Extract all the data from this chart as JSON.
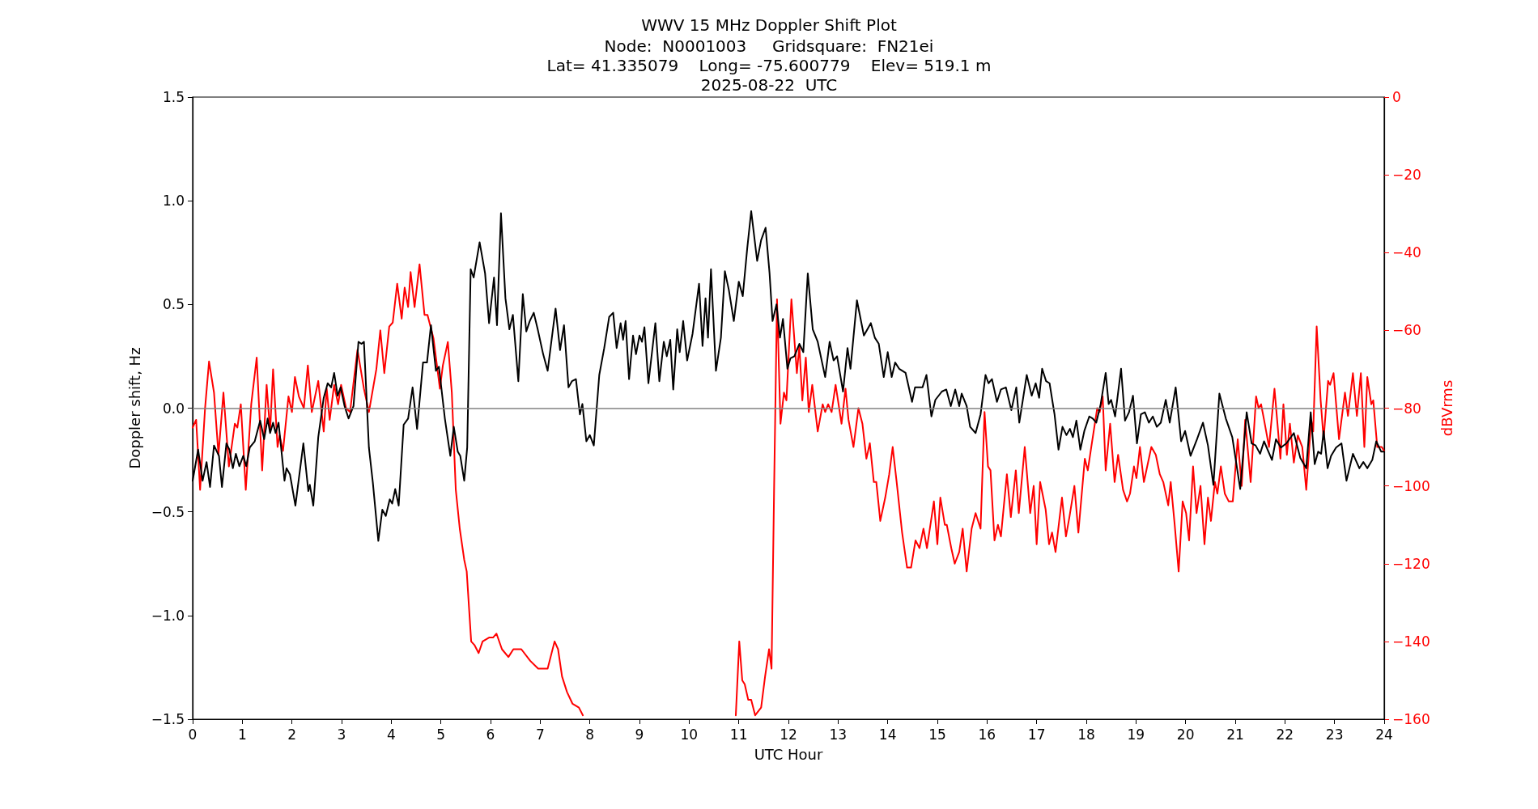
{
  "chart_data": {
    "type": "line",
    "title": "WWV 15 MHz Doppler Shift Plot",
    "subtitle": "Node:  N0001003     Gridsquare:  FN21ei\nLat= 41.335079    Long= -75.600779    Elev= 519.1 m\n2025-08-22  UTC",
    "xlabel": "UTC Hour",
    "ylabel": "Doppler shift, Hz",
    "y2label": "dBVrms",
    "xlim": [
      0,
      24
    ],
    "xticks": [
      0,
      1,
      2,
      3,
      4,
      5,
      6,
      7,
      8,
      9,
      10,
      11,
      12,
      13,
      14,
      15,
      16,
      17,
      18,
      19,
      20,
      21,
      22,
      23,
      24
    ],
    "ylim": [
      -1.5,
      1.5
    ],
    "yticks": [
      {
        "value": -1.5,
        "label": "−1.5"
      },
      {
        "value": -1,
        "label": "−1.0"
      },
      {
        "value": -0.5,
        "label": "−0.5"
      },
      {
        "value": 0,
        "label": "0.0"
      },
      {
        "value": 0.5,
        "label": "0.5"
      },
      {
        "value": 1,
        "label": "1.0"
      },
      {
        "value": 1.5,
        "label": "1.5"
      }
    ],
    "y2lim": [
      -160,
      0
    ],
    "y2ticks": [
      {
        "value": -160,
        "label": "−160"
      },
      {
        "value": -140,
        "label": "−140"
      },
      {
        "value": -120,
        "label": "−120"
      },
      {
        "value": -100,
        "label": "−100"
      },
      {
        "value": -80,
        "label": "−80"
      },
      {
        "value": -60,
        "label": "−60"
      },
      {
        "value": -40,
        "label": "−40"
      },
      {
        "value": -20,
        "label": "−20"
      },
      {
        "value": 0,
        "label": "0"
      }
    ],
    "grid": false,
    "marker": "none",
    "line_style": "solid",
    "ref_lines": [
      {
        "axis": "y",
        "value": 0,
        "color": "#808080"
      }
    ],
    "series": [
      {
        "color": "#000000",
        "axis": "y",
        "x": [
          0.0,
          0.11,
          0.2,
          0.28,
          0.35,
          0.43,
          0.53,
          0.59,
          0.68,
          0.74,
          0.81,
          0.87,
          0.94,
          1.02,
          1.08,
          1.15,
          1.25,
          1.36,
          1.44,
          1.51,
          1.56,
          1.62,
          1.67,
          1.73,
          1.85,
          1.89,
          1.96,
          2.07,
          2.23,
          2.33,
          2.36,
          2.43,
          2.53,
          2.64,
          2.72,
          2.79,
          2.85,
          2.92,
          2.98,
          3.06,
          3.14,
          3.24,
          3.34,
          3.4,
          3.45,
          3.55,
          3.63,
          3.74,
          3.82,
          3.89,
          3.97,
          4.02,
          4.08,
          4.15,
          4.25,
          4.34,
          4.43,
          4.52,
          4.64,
          4.72,
          4.8,
          4.9,
          4.96,
          5.08,
          5.19,
          5.26,
          5.34,
          5.39,
          5.47,
          5.53,
          5.6,
          5.66,
          5.78,
          5.89,
          5.97,
          6.07,
          6.13,
          6.21,
          6.3,
          6.38,
          6.45,
          6.56,
          6.65,
          6.72,
          6.79,
          6.87,
          6.95,
          7.06,
          7.15,
          7.31,
          7.4,
          7.48,
          7.57,
          7.64,
          7.72,
          7.8,
          7.85,
          7.93,
          8.0,
          8.08,
          8.19,
          8.29,
          8.39,
          8.47,
          8.54,
          8.62,
          8.67,
          8.72,
          8.79,
          8.87,
          8.93,
          9.0,
          9.05,
          9.1,
          9.18,
          9.32,
          9.4,
          9.49,
          9.55,
          9.62,
          9.68,
          9.76,
          9.81,
          9.88,
          9.96,
          10.07,
          10.2,
          10.27,
          10.33,
          10.38,
          10.44,
          10.54,
          10.64,
          10.72,
          10.8,
          10.9,
          11.0,
          11.08,
          11.17,
          11.25,
          11.37,
          11.45,
          11.54,
          11.62,
          11.68,
          11.76,
          11.83,
          11.89,
          11.98,
          12.04,
          12.12,
          12.22,
          12.3,
          12.39,
          12.49,
          12.59,
          12.74,
          12.83,
          12.91,
          12.98,
          13.1,
          13.19,
          13.25,
          13.38,
          13.52,
          13.66,
          13.74,
          13.82,
          13.92,
          14.0,
          14.08,
          14.15,
          14.23,
          14.36,
          14.49,
          14.55,
          14.7,
          14.78,
          14.88,
          14.96,
          15.09,
          15.18,
          15.27,
          15.36,
          15.44,
          15.49,
          15.59,
          15.66,
          15.77,
          15.87,
          15.97,
          16.03,
          16.1,
          16.2,
          16.28,
          16.38,
          16.49,
          16.59,
          16.65,
          16.8,
          16.9,
          16.98,
          17.05,
          17.11,
          17.19,
          17.26,
          17.36,
          17.44,
          17.52,
          17.6,
          17.67,
          17.73,
          17.8,
          17.88,
          17.96,
          18.06,
          18.13,
          18.2,
          18.29,
          18.39,
          18.45,
          18.5,
          18.58,
          18.7,
          18.78,
          18.86,
          18.94,
          19.02,
          19.1,
          19.18,
          19.26,
          19.34,
          19.42,
          19.5,
          19.6,
          19.68,
          19.8,
          19.91,
          19.99,
          20.1,
          20.23,
          20.35,
          20.45,
          20.56,
          20.68,
          20.81,
          20.94,
          21.1,
          21.23,
          21.33,
          21.41,
          21.5,
          21.58,
          21.74,
          21.82,
          21.92,
          22.03,
          22.18,
          22.31,
          22.43,
          22.52,
          22.6,
          22.67,
          22.73,
          22.78,
          22.86,
          22.93,
          23.03,
          23.14,
          23.24,
          23.37,
          23.5,
          23.58,
          23.66,
          23.76,
          23.84,
          23.94,
          24.0
        ],
        "values": [
          -0.35,
          -0.2,
          -0.35,
          -0.26,
          -0.38,
          -0.18,
          -0.23,
          -0.38,
          -0.17,
          -0.2,
          -0.29,
          -0.22,
          -0.28,
          -0.23,
          -0.28,
          -0.19,
          -0.16,
          -0.06,
          -0.15,
          -0.05,
          -0.12,
          -0.07,
          -0.12,
          -0.07,
          -0.35,
          -0.29,
          -0.32,
          -0.47,
          -0.17,
          -0.4,
          -0.37,
          -0.47,
          -0.14,
          0.05,
          0.12,
          0.1,
          0.17,
          0.06,
          0.1,
          0.01,
          -0.05,
          0.01,
          0.32,
          0.31,
          0.32,
          -0.19,
          -0.36,
          -0.64,
          -0.49,
          -0.52,
          -0.44,
          -0.46,
          -0.39,
          -0.47,
          -0.08,
          -0.05,
          0.1,
          -0.1,
          0.22,
          0.22,
          0.4,
          0.18,
          0.2,
          -0.05,
          -0.23,
          -0.09,
          -0.21,
          -0.23,
          -0.35,
          -0.19,
          0.67,
          0.63,
          0.8,
          0.65,
          0.41,
          0.63,
          0.4,
          0.94,
          0.53,
          0.38,
          0.45,
          0.13,
          0.55,
          0.37,
          0.42,
          0.46,
          0.38,
          0.26,
          0.18,
          0.48,
          0.28,
          0.4,
          0.1,
          0.13,
          0.14,
          -0.03,
          0.02,
          -0.16,
          -0.13,
          -0.18,
          0.16,
          0.29,
          0.44,
          0.46,
          0.29,
          0.41,
          0.33,
          0.42,
          0.14,
          0.35,
          0.26,
          0.35,
          0.32,
          0.39,
          0.12,
          0.41,
          0.13,
          0.32,
          0.25,
          0.33,
          0.09,
          0.38,
          0.27,
          0.42,
          0.23,
          0.36,
          0.6,
          0.3,
          0.53,
          0.34,
          0.67,
          0.18,
          0.34,
          0.66,
          0.57,
          0.42,
          0.61,
          0.54,
          0.77,
          0.95,
          0.71,
          0.81,
          0.87,
          0.65,
          0.42,
          0.5,
          0.34,
          0.43,
          0.19,
          0.24,
          0.25,
          0.31,
          0.27,
          0.65,
          0.38,
          0.32,
          0.15,
          0.32,
          0.23,
          0.25,
          0.08,
          0.29,
          0.19,
          0.52,
          0.35,
          0.41,
          0.34,
          0.31,
          0.15,
          0.27,
          0.15,
          0.22,
          0.19,
          0.17,
          0.03,
          0.1,
          0.1,
          0.16,
          -0.04,
          0.04,
          0.08,
          0.09,
          0.01,
          0.09,
          0.01,
          0.07,
          0.01,
          -0.09,
          -0.12,
          -0.03,
          0.16,
          0.12,
          0.14,
          0.03,
          0.09,
          0.1,
          -0.01,
          0.1,
          -0.07,
          0.16,
          0.06,
          0.12,
          0.05,
          0.19,
          0.13,
          0.12,
          -0.03,
          -0.2,
          -0.09,
          -0.13,
          -0.1,
          -0.14,
          -0.06,
          -0.2,
          -0.11,
          -0.04,
          -0.05,
          -0.07,
          0.02,
          0.17,
          0.02,
          0.04,
          -0.04,
          0.19,
          -0.06,
          -0.02,
          0.06,
          -0.17,
          -0.03,
          -0.02,
          -0.07,
          -0.04,
          -0.09,
          -0.07,
          0.04,
          -0.07,
          0.1,
          -0.16,
          -0.11,
          -0.23,
          -0.15,
          -0.07,
          -0.18,
          -0.37,
          0.07,
          -0.05,
          -0.14,
          -0.39,
          -0.02,
          -0.17,
          -0.18,
          -0.22,
          -0.16,
          -0.25,
          -0.15,
          -0.19,
          -0.17,
          -0.12,
          -0.24,
          -0.29,
          -0.02,
          -0.27,
          -0.21,
          -0.22,
          -0.11,
          -0.29,
          -0.23,
          -0.19,
          -0.17,
          -0.35,
          -0.22,
          -0.29,
          -0.26,
          -0.29,
          -0.25,
          -0.16,
          -0.21,
          -0.21
        ]
      },
      {
        "color": "#ff0000",
        "axis": "y2",
        "x": [
          0.0,
          0.07,
          0.15,
          0.25,
          0.33,
          0.43,
          0.52,
          0.62,
          0.73,
          0.85,
          0.9,
          0.97,
          1.07,
          1.18,
          1.29,
          1.4,
          1.49,
          1.56,
          1.62,
          1.71,
          1.75,
          1.82,
          1.93,
          2.0,
          2.06,
          2.14,
          2.24,
          2.32,
          2.4,
          2.53,
          2.64,
          2.7,
          2.76,
          2.85,
          2.93,
          2.99,
          3.09,
          3.17,
          3.32,
          3.45,
          3.55,
          3.7,
          3.78,
          3.86,
          3.96,
          4.03,
          4.12,
          4.21,
          4.27,
          4.34,
          4.39,
          4.47,
          4.57,
          4.67,
          4.73,
          4.85,
          4.98,
          5.04,
          5.14,
          5.22,
          5.3,
          5.38,
          5.47,
          5.52,
          5.61,
          5.68,
          5.76,
          5.84,
          5.97,
          6.05,
          6.12,
          6.23,
          6.36,
          6.46,
          6.52,
          6.62,
          6.8,
          6.96,
          7.15,
          7.29,
          7.36,
          7.44,
          7.54,
          7.65,
          7.78,
          7.86,
          9.4,
          10.94,
          11.01,
          11.07,
          11.12,
          11.19,
          11.25,
          11.33,
          11.45,
          11.53,
          11.61,
          11.66,
          11.71,
          11.77,
          11.84,
          11.91,
          11.96,
          12.06,
          12.17,
          12.22,
          12.28,
          12.35,
          12.41,
          12.48,
          12.59,
          12.69,
          12.74,
          12.8,
          12.87,
          12.95,
          13.07,
          13.15,
          13.21,
          13.31,
          13.41,
          13.49,
          13.57,
          13.64,
          13.72,
          13.77,
          13.85,
          13.95,
          14.03,
          14.1,
          14.18,
          14.29,
          14.39,
          14.47,
          14.56,
          14.64,
          14.72,
          14.79,
          14.93,
          15.0,
          15.06,
          15.15,
          15.19,
          15.28,
          15.35,
          15.44,
          15.51,
          15.59,
          15.69,
          15.77,
          15.87,
          15.95,
          16.02,
          16.07,
          16.15,
          16.22,
          16.28,
          16.4,
          16.48,
          16.58,
          16.64,
          16.76,
          16.87,
          16.94,
          17.0,
          17.07,
          17.18,
          17.25,
          17.31,
          17.38,
          17.51,
          17.59,
          17.66,
          17.76,
          17.84,
          17.97,
          18.03,
          18.1,
          18.22,
          18.27,
          18.33,
          18.39,
          18.48,
          18.57,
          18.64,
          18.74,
          18.82,
          18.88,
          18.96,
          19.01,
          19.08,
          19.16,
          19.31,
          19.4,
          19.48,
          19.55,
          19.65,
          19.7,
          19.78,
          19.86,
          19.94,
          20.01,
          20.07,
          20.15,
          20.22,
          20.3,
          20.38,
          20.45,
          20.51,
          20.59,
          20.64,
          20.71,
          20.79,
          20.87,
          20.95,
          21.05,
          21.13,
          21.2,
          21.31,
          21.42,
          21.47,
          21.52,
          21.58,
          21.68,
          21.79,
          21.91,
          21.97,
          22.04,
          22.1,
          22.18,
          22.26,
          22.35,
          22.43,
          22.53,
          22.57,
          22.64,
          22.72,
          22.78,
          22.87,
          22.91,
          22.98,
          23.09,
          23.21,
          23.27,
          23.37,
          23.45,
          23.53,
          23.6,
          23.66,
          23.74,
          23.78,
          23.86,
          23.95,
          24.0
        ],
        "values": [
          -85,
          -83,
          -101,
          -80,
          -68,
          -76,
          -92,
          -76,
          -95,
          -84,
          -85,
          -79,
          -101,
          -79,
          -67,
          -96,
          -74,
          -86,
          -70,
          -90,
          -87,
          -91,
          -77,
          -81,
          -72,
          -77,
          -80,
          -69,
          -81,
          -73,
          -86,
          -75,
          -83,
          -74,
          -79,
          -74,
          -80,
          -81,
          -65,
          -75,
          -81,
          -70,
          -60,
          -71,
          -59,
          -58,
          -48,
          -57,
          -49,
          -54,
          -45,
          -54,
          -43,
          -56,
          -56,
          -62,
          -75,
          -69,
          -63,
          -76,
          -101,
          -111,
          -119,
          -122,
          -140,
          -141,
          -143,
          -140,
          -139,
          -139,
          -138,
          -142,
          -144,
          -142,
          -142,
          -142,
          -145,
          -147,
          -147,
          -140,
          -142,
          -149,
          -153,
          -156,
          -157,
          -159,
          null,
          -159,
          -140,
          -150,
          -151,
          -155,
          -155,
          -159,
          -157,
          -149,
          -142,
          -147,
          -102,
          -52,
          -84,
          -76,
          -78,
          -52,
          -71,
          -64,
          -78,
          -67,
          -81,
          -74,
          -86,
          -79,
          -81,
          -79,
          -81,
          -74,
          -84,
          -75,
          -83,
          -90,
          -80,
          -84,
          -93,
          -89,
          -99,
          -99,
          -109,
          -103,
          -97,
          -90,
          -99,
          -112,
          -121,
          -121,
          -114,
          -116,
          -111,
          -116,
          -104,
          -115,
          -103,
          -110,
          -110,
          -116,
          -120,
          -117,
          -111,
          -122,
          -111,
          -107,
          -111,
          -81,
          -95,
          -96,
          -114,
          -110,
          -113,
          -97,
          -108,
          -96,
          -107,
          -90,
          -107,
          -100,
          -115,
          -99,
          -106,
          -115,
          -112,
          -117,
          -103,
          -113,
          -108,
          -100,
          -112,
          -93,
          -96,
          -90,
          -80,
          -81,
          -77,
          -96,
          -84,
          -99,
          -92,
          -101,
          -104,
          -102,
          -95,
          -98,
          -90,
          -99,
          -90,
          -92,
          -97,
          -99,
          -105,
          -99,
          -110,
          -122,
          -104,
          -107,
          -114,
          -95,
          -107,
          -100,
          -115,
          -103,
          -109,
          -99,
          -102,
          -95,
          -102,
          -104,
          -104,
          -88,
          -100,
          -83,
          -99,
          -77,
          -80,
          -79,
          -83,
          -90,
          -75,
          -93,
          -79,
          -92,
          -84,
          -94,
          -87,
          -90,
          -101,
          -83,
          -86,
          -59,
          -78,
          -88,
          -73,
          -74,
          -71,
          -88,
          -76,
          -82,
          -71,
          -82,
          -71,
          -90,
          -72,
          -79,
          -78,
          -90,
          -90,
          -91
        ]
      }
    ]
  }
}
